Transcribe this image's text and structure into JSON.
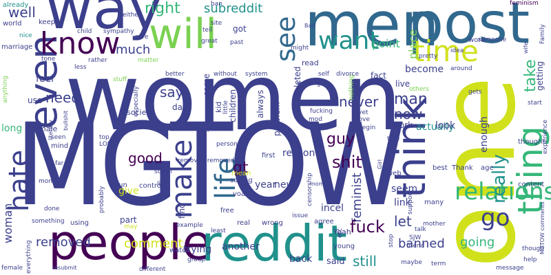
{
  "cloud": {
    "palette": {
      "indigo": "#3b3f8c",
      "darkpurple": "#440154",
      "blue": "#31688e",
      "teal": "#21918c",
      "green": "#35b779",
      "lime": "#7ad151",
      "yellow": "#d0e11c"
    },
    "words": [
      {
        "text": "women"
      },
      {
        "text": "MGTOW"
      },
      {
        "text": "one"
      },
      {
        "text": "men"
      },
      {
        "text": "post"
      },
      {
        "text": "way"
      },
      {
        "text": "will"
      },
      {
        "text": "people"
      },
      {
        "text": "reddit"
      },
      {
        "text": "think"
      },
      {
        "text": "thing"
      },
      {
        "text": "even"
      },
      {
        "text": "know"
      },
      {
        "text": "time"
      },
      {
        "text": "hate"
      },
      {
        "text": "make"
      },
      {
        "text": "life"
      },
      {
        "text": "see"
      },
      {
        "text": "want"
      },
      {
        "text": "relationship"
      },
      {
        "text": "go"
      },
      {
        "text": "really"
      },
      {
        "text": "right"
      },
      {
        "text": "subreddit"
      },
      {
        "text": "place"
      },
      {
        "text": "feminism"
      },
      {
        "text": "woman"
      },
      {
        "text": "take"
      },
      {
        "text": "feminist"
      },
      {
        "text": "fuck"
      },
      {
        "text": "shit"
      },
      {
        "text": "removed"
      },
      {
        "text": "banned"
      },
      {
        "text": "comment"
      },
      {
        "text": "still"
      },
      {
        "text": "going"
      },
      {
        "text": "say"
      },
      {
        "text": "need"
      },
      {
        "text": "good"
      },
      {
        "text": "gt"
      },
      {
        "text": "guy"
      },
      {
        "text": "man"
      },
      {
        "text": "now"
      },
      {
        "text": "never"
      },
      {
        "text": "point"
      },
      {
        "text": "much"
      },
      {
        "text": "well"
      },
      {
        "text": "let"
      },
      {
        "text": "already"
      },
      {
        "text": "world"
      },
      {
        "text": "keep"
      },
      {
        "text": "nice"
      },
      {
        "text": "marriage"
      },
      {
        "text": "tone"
      },
      {
        "text": "anything"
      },
      {
        "text": "child"
      },
      {
        "text": "sympathy"
      },
      {
        "text": "use"
      },
      {
        "text": "rather"
      },
      {
        "text": "less"
      },
      {
        "text": "stuff"
      },
      {
        "text": "especially"
      },
      {
        "text": "day"
      },
      {
        "text": "care"
      },
      {
        "text": "society"
      },
      {
        "text": "feel"
      },
      {
        "text": "long"
      },
      {
        "text": "male"
      },
      {
        "text": "seen"
      },
      {
        "text": "mind"
      },
      {
        "text": "far"
      },
      {
        "text": "money"
      },
      {
        "text": "done"
      },
      {
        "text": "probably"
      },
      {
        "text": "simply"
      },
      {
        "text": "run"
      },
      {
        "text": "control"
      },
      {
        "text": "give"
      },
      {
        "text": "part"
      },
      {
        "text": "using"
      },
      {
        "text": "example"
      },
      {
        "text": "may"
      },
      {
        "text": "female"
      },
      {
        "text": "everything"
      },
      {
        "text": "something"
      },
      {
        "text": "resubmit"
      },
      {
        "text": "different"
      },
      {
        "text": "watch"
      },
      {
        "text": "group"
      },
      {
        "text": "free"
      },
      {
        "text": "trying"
      },
      {
        "text": "another"
      },
      {
        "text": "back"
      },
      {
        "text": "said"
      },
      {
        "text": "find"
      },
      {
        "text": "kid"
      },
      {
        "text": "children"
      },
      {
        "text": "always"
      },
      {
        "text": "problem"
      },
      {
        "text": "deleted"
      },
      {
        "text": "read"
      },
      {
        "text": "nothing"
      },
      {
        "text": "fact"
      },
      {
        "text": "live"
      },
      {
        "text": "making"
      },
      {
        "text": "lot"
      },
      {
        "text": "fucking"
      },
      {
        "text": "yet"
      },
      {
        "text": "love"
      },
      {
        "text": "begin"
      },
      {
        "text": "mod"
      },
      {
        "text": "work"
      },
      {
        "text": "actually"
      },
      {
        "text": "look"
      },
      {
        "text": "enough"
      },
      {
        "text": "seem"
      },
      {
        "text": "link"
      },
      {
        "text": "become"
      },
      {
        "text": "getting"
      },
      {
        "text": "start"
      },
      {
        "text": "experience"
      },
      {
        "text": "thought"
      },
      {
        "text": "content"
      },
      {
        "text": "removed removed"
      },
      {
        "text": "voat"
      },
      {
        "text": "mean"
      },
      {
        "text": "saying"
      },
      {
        "text": "year"
      },
      {
        "text": "new"
      },
      {
        "text": "incel"
      },
      {
        "text": "agree"
      },
      {
        "text": "issue"
      },
      {
        "text": "real"
      },
      {
        "text": "wrong"
      },
      {
        "text": "least"
      },
      {
        "text": "first"
      },
      {
        "text": "person"
      },
      {
        "text": "reason"
      },
      {
        "text": "censorship"
      },
      {
        "text": "Yeah"
      },
      {
        "text": "young"
      },
      {
        "text": "etc"
      },
      {
        "text": "SJW"
      },
      {
        "text": "stop"
      },
      {
        "text": "friend"
      },
      {
        "text": "mother"
      },
      {
        "text": "maybe"
      },
      {
        "text": "term"
      },
      {
        "text": "message"
      },
      {
        "text": "help"
      },
      {
        "text": "though"
      },
      {
        "text": "MGTOW comments"
      },
      {
        "text": "Family"
      },
      {
        "text": "age"
      },
      {
        "text": "best"
      },
      {
        "text": "Thank"
      },
      {
        "text": "many"
      },
      {
        "text": "support"
      },
      {
        "text": "talk"
      },
      {
        "text": "web"
      },
      {
        "text": "true"
      },
      {
        "text": "social"
      },
      {
        "text": "list"
      },
      {
        "text": "happen"
      },
      {
        "text": "top"
      },
      {
        "text": "LOL"
      },
      {
        "text": "made"
      },
      {
        "text": "little"
      },
      {
        "text": "understand"
      },
      {
        "text": "without"
      },
      {
        "text": "system"
      },
      {
        "text": "self"
      },
      {
        "text": "divorce"
      },
      {
        "text": "pretty"
      },
      {
        "text": "idea"
      },
      {
        "text": "word"
      },
      {
        "text": "someone"
      },
      {
        "text": "around"
      },
      {
        "text": "gets"
      },
      {
        "text": "others"
      },
      {
        "text": "better"
      },
      {
        "text": "matter"
      },
      {
        "text": "either"
      },
      {
        "text": "sure"
      },
      {
        "text": "tell"
      },
      {
        "text": "great"
      },
      {
        "text": "site"
      },
      {
        "text": "ban"
      },
      {
        "text": "past"
      },
      {
        "text": "might"
      },
      {
        "text": "Bad"
      },
      {
        "text": "got"
      },
      {
        "text": "come"
      },
      {
        "text": "bullshit"
      },
      {
        "text": "literally"
      },
      {
        "text": "mom"
      },
      {
        "text": "Girl"
      },
      {
        "text": "wife"
      }
    ]
  }
}
